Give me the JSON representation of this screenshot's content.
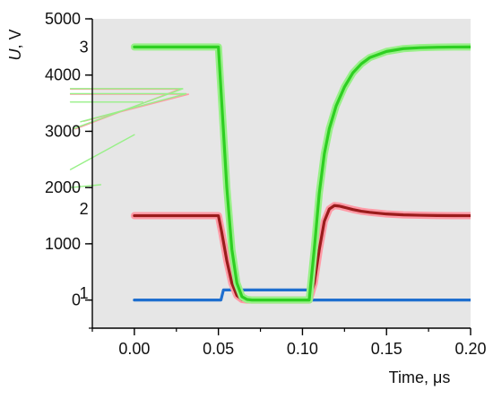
{
  "chart_data": {
    "type": "line",
    "xlabel": "Time, μs",
    "ylabel": {
      "symbol": "U",
      "unit": ", V"
    },
    "xlim": [
      -0.025,
      0.2
    ],
    "ylim": [
      -500,
      5000
    ],
    "xticks": [
      0.0,
      0.05,
      0.1,
      0.15,
      0.2
    ],
    "xtick_labels": [
      "0.00",
      "0.05",
      "0.10",
      "0.15",
      "0.20"
    ],
    "yticks": [
      0,
      1000,
      2000,
      3000,
      4000,
      5000
    ],
    "ytick_labels": [
      "0",
      "1000",
      "2000",
      "3000",
      "4000",
      "5000"
    ],
    "background_color": "#e6e6e6",
    "grid": false,
    "series": [
      {
        "name": "1",
        "color": "#1f6fcf",
        "x": [
          0.0,
          0.0515,
          0.053,
          0.06,
          0.07,
          0.08,
          0.09,
          0.1,
          0.103,
          0.105,
          0.11,
          0.13,
          0.15,
          0.17,
          0.2
        ],
        "y": [
          0,
          0,
          180,
          180,
          180,
          180,
          180,
          180,
          180,
          0,
          0,
          0,
          0,
          0,
          0
        ]
      },
      {
        "name": "2",
        "color": "#9b1c1c",
        "halo_color": "#ff9aa6",
        "x": [
          0.0,
          0.02,
          0.04,
          0.05,
          0.052,
          0.055,
          0.058,
          0.061,
          0.064,
          0.067,
          0.07,
          0.08,
          0.09,
          0.1,
          0.104,
          0.107,
          0.11,
          0.113,
          0.116,
          0.119,
          0.122,
          0.126,
          0.13,
          0.135,
          0.14,
          0.15,
          0.16,
          0.17,
          0.18,
          0.19,
          0.2
        ],
        "y": [
          1500,
          1500,
          1500,
          1500,
          1200,
          700,
          300,
          80,
          10,
          0,
          0,
          0,
          0,
          0,
          0,
          300,
          900,
          1400,
          1620,
          1680,
          1670,
          1640,
          1610,
          1580,
          1560,
          1530,
          1515,
          1508,
          1503,
          1501,
          1500
        ]
      },
      {
        "name": "3",
        "color": "#2ecf22",
        "halo_color": "#98f088",
        "x": [
          0.0,
          0.02,
          0.04,
          0.05,
          0.052,
          0.055,
          0.058,
          0.061,
          0.064,
          0.067,
          0.07,
          0.08,
          0.09,
          0.1,
          0.104,
          0.107,
          0.11,
          0.113,
          0.116,
          0.12,
          0.125,
          0.13,
          0.135,
          0.14,
          0.15,
          0.16,
          0.17,
          0.18,
          0.19,
          0.2
        ],
        "y": [
          4500,
          4500,
          4500,
          4500,
          3500,
          2000,
          900,
          300,
          60,
          10,
          0,
          0,
          0,
          0,
          0,
          900,
          1900,
          2600,
          3050,
          3450,
          3790,
          4040,
          4200,
          4310,
          4420,
          4470,
          4487,
          4495,
          4499,
          4500
        ]
      }
    ],
    "curve_labels": [
      {
        "text": "1",
        "x": -0.03,
        "y": 120
      },
      {
        "text": "2",
        "x": -0.03,
        "y": 1620
      },
      {
        "text": "3",
        "x": -0.03,
        "y": 4500
      }
    ],
    "artifacts": [
      {
        "color": "#ff9aa6",
        "segments": [
          [
            [
              -0.038,
              3750
            ],
            [
              0.027,
              3750
            ],
            [
              -0.035,
              3040
            ]
          ],
          [
            [
              -0.038,
              3660
            ],
            [
              0.0325,
              3660
            ],
            [
              -0.03,
              3180
            ]
          ]
        ]
      },
      {
        "color": "#98f088",
        "segments": [
          [
            [
              -0.038,
              3760
            ],
            [
              0.029,
              3760
            ],
            [
              -0.036,
              3050
            ]
          ],
          [
            [
              -0.038,
              3670
            ],
            [
              0.031,
              3670
            ],
            [
              -0.032,
              3170
            ]
          ],
          [
            [
              -0.038,
              3520
            ],
            [
              0.005,
              3520
            ]
          ],
          [
            [
              -0.038,
              2320
            ],
            [
              0.0,
              2940
            ]
          ],
          [
            [
              -0.038,
              2000
            ],
            [
              -0.02,
              2050
            ]
          ]
        ]
      }
    ]
  }
}
